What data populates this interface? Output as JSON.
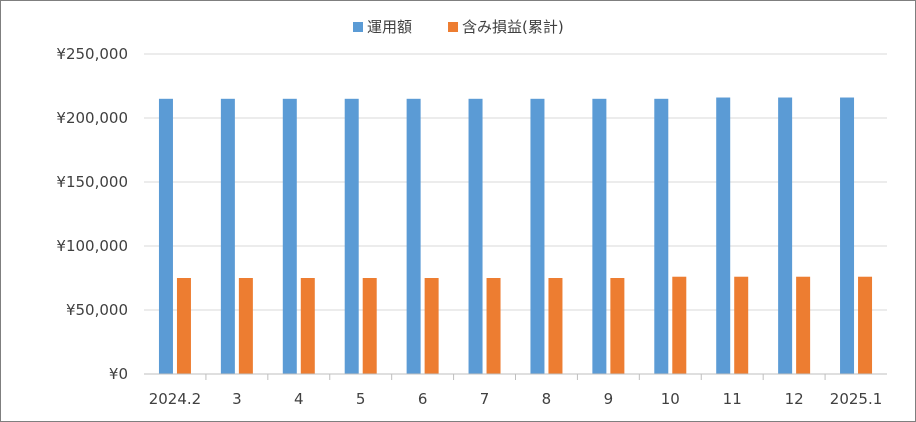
{
  "chart_data": {
    "type": "bar",
    "categories": [
      "2024.2",
      "3",
      "4",
      "5",
      "6",
      "7",
      "8",
      "9",
      "10",
      "11",
      "12",
      "2025.1"
    ],
    "series": [
      {
        "name": "運用額",
        "color": "#5b9bd5",
        "values": [
          215000,
          215000,
          215000,
          215000,
          215000,
          215000,
          215000,
          215000,
          215000,
          216000,
          216000,
          216000
        ]
      },
      {
        "name": "含み損益(累計)",
        "color": "#ed7d31",
        "values": [
          75000,
          75000,
          75000,
          75000,
          75000,
          75000,
          75000,
          75000,
          76000,
          76000,
          76000,
          76000
        ]
      }
    ],
    "y_ticks": [
      "¥0",
      "¥50,000",
      "¥100,000",
      "¥150,000",
      "¥200,000",
      "¥250,000"
    ],
    "ylim": [
      0,
      250000
    ],
    "grid": true,
    "legend_position": "top-center"
  }
}
